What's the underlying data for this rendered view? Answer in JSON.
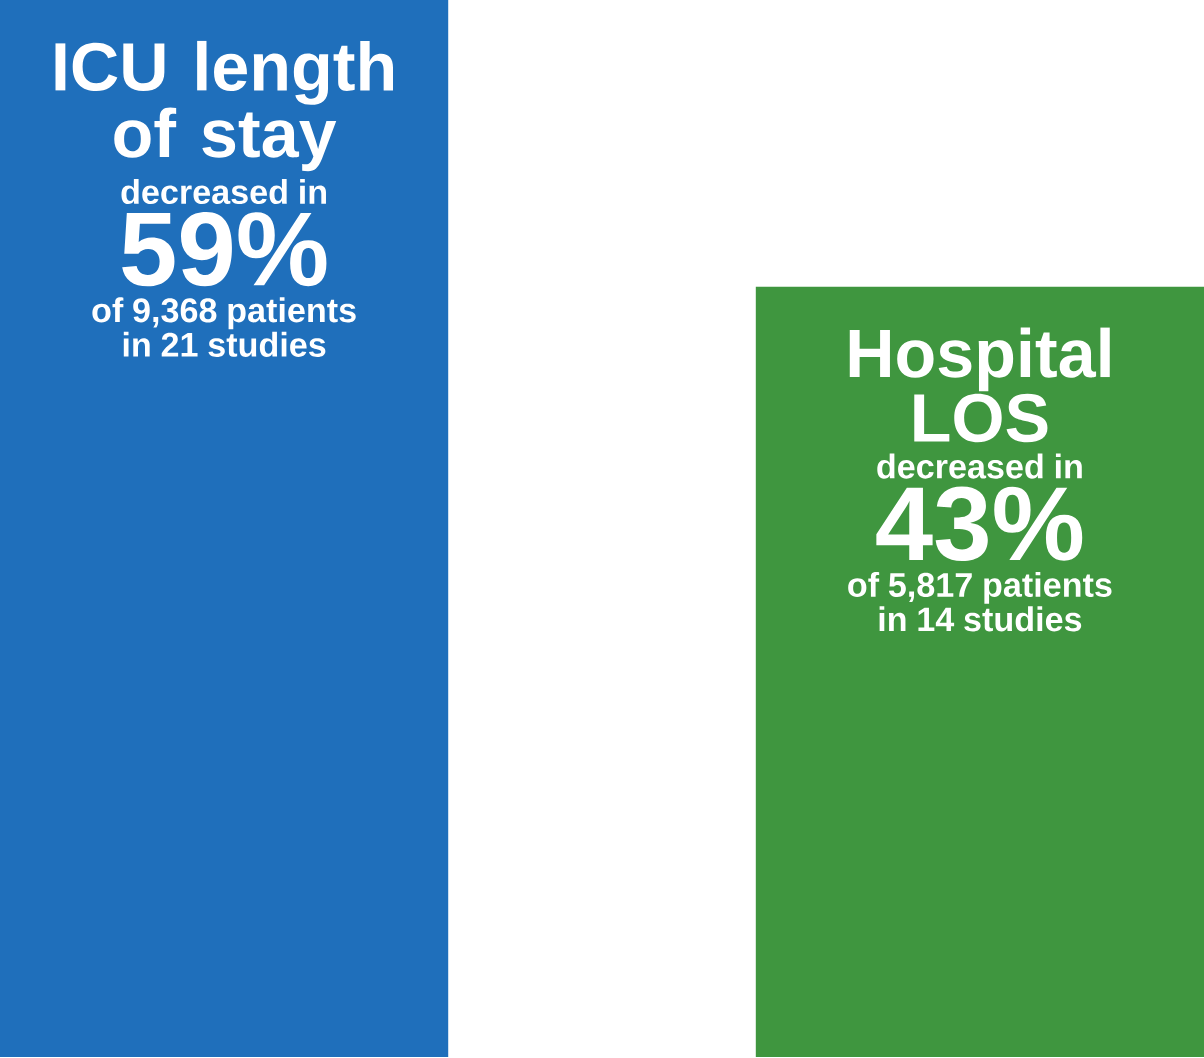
{
  "chart_data": {
    "type": "bar",
    "categories": [
      "ICU length of stay",
      "Hospital LOS"
    ],
    "values": [
      59,
      43
    ],
    "value_labels": [
      "59%",
      "43%"
    ],
    "colors": [
      "#1f6fbb",
      "#3f963f"
    ],
    "annotations": [
      "decreased in",
      "of 9,368 patients in 21 studies",
      "decreased in",
      "of 5,817 patients in 14 studies"
    ]
  }
}
